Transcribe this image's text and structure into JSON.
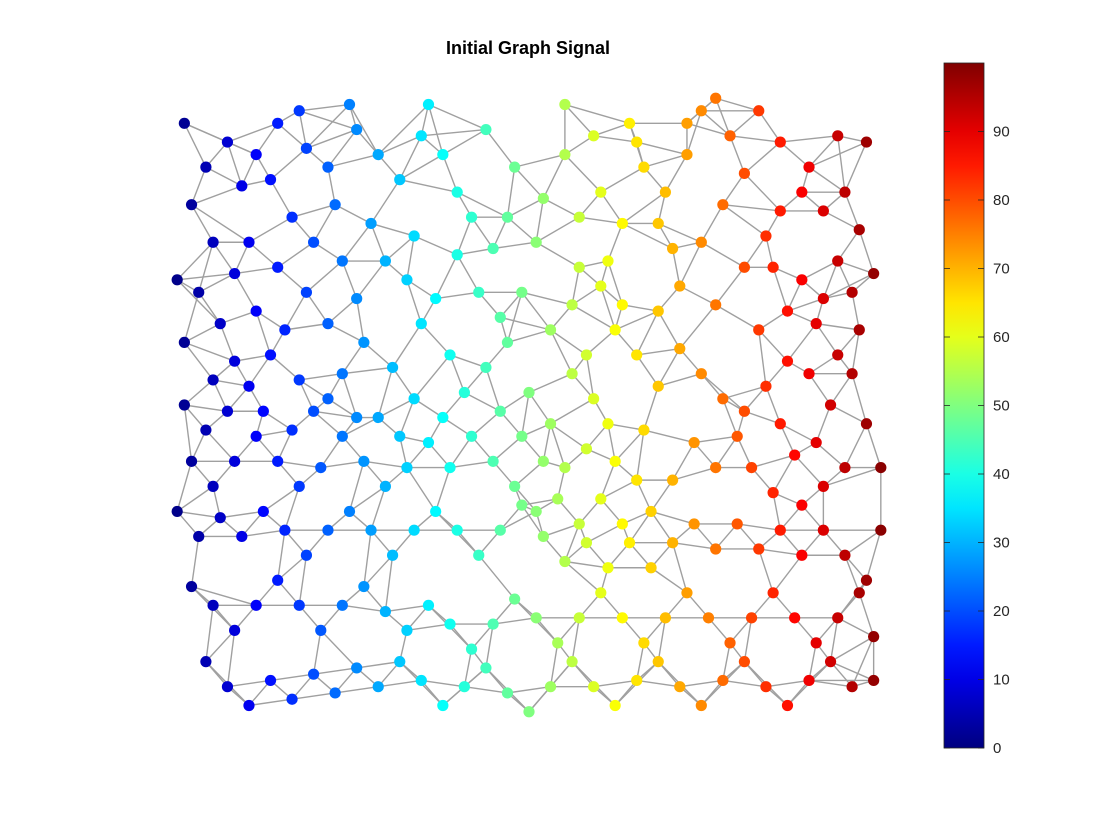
{
  "chart_data": {
    "type": "scatter",
    "subtype": "graph-signal",
    "title": "Initial Graph Signal",
    "xlabel": "",
    "ylabel": "",
    "axes_visible": false,
    "grid": false,
    "legend": "none",
    "colormap": "jet",
    "colorbar": {
      "location": "right",
      "range": [
        0,
        100
      ],
      "ticks": [
        0,
        10,
        20,
        30,
        40,
        50,
        60,
        70,
        80,
        90
      ]
    },
    "node_count_approx": 500,
    "signal_description": "node value increases linearly with x-coordinate from about 0 at the left edge to 100 at the right edge",
    "x_range": [
      0,
      1
    ],
    "y_range": [
      0,
      1
    ],
    "edge_color": "#a0a0a0",
    "nodes": [
      [
        0.02,
        0.95
      ],
      [
        0.05,
        0.88
      ],
      [
        0.03,
        0.82
      ],
      [
        0.08,
        0.92
      ],
      [
        0.1,
        0.85
      ],
      [
        0.12,
        0.9
      ],
      [
        0.15,
        0.95
      ],
      [
        0.14,
        0.86
      ],
      [
        0.17,
        0.8
      ],
      [
        0.06,
        0.76
      ],
      [
        0.11,
        0.76
      ],
      [
        0.19,
        0.91
      ],
      [
        0.22,
        0.88
      ],
      [
        0.26,
        0.94
      ],
      [
        0.23,
        0.82
      ],
      [
        0.28,
        0.79
      ],
      [
        0.24,
        0.73
      ],
      [
        0.3,
        0.73
      ],
      [
        0.32,
        0.86
      ],
      [
        0.29,
        0.9
      ],
      [
        0.36,
        0.98
      ],
      [
        0.38,
        0.9
      ],
      [
        0.4,
        0.84
      ],
      [
        0.42,
        0.8
      ],
      [
        0.45,
        0.75
      ],
      [
        0.4,
        0.74
      ],
      [
        0.37,
        0.67
      ],
      [
        0.43,
        0.68
      ],
      [
        0.48,
        0.88
      ],
      [
        0.52,
        0.83
      ],
      [
        0.55,
        0.9
      ],
      [
        0.57,
        0.8
      ],
      [
        0.51,
        0.76
      ],
      [
        0.57,
        0.72
      ],
      [
        0.61,
        0.73
      ],
      [
        0.64,
        0.95
      ],
      [
        0.66,
        0.88
      ],
      [
        0.69,
        0.84
      ],
      [
        0.68,
        0.79
      ],
      [
        0.72,
        0.9
      ],
      [
        0.74,
        0.97
      ],
      [
        0.78,
        0.93
      ],
      [
        0.82,
        0.97
      ],
      [
        0.8,
        0.87
      ],
      [
        0.77,
        0.82
      ],
      [
        0.74,
        0.76
      ],
      [
        0.8,
        0.72
      ],
      [
        0.85,
        0.81
      ],
      [
        0.88,
        0.84
      ],
      [
        0.91,
        0.81
      ],
      [
        0.94,
        0.84
      ],
      [
        0.96,
        0.78
      ],
      [
        0.93,
        0.73
      ],
      [
        0.98,
        0.71
      ],
      [
        0.95,
        0.68
      ],
      [
        0.91,
        0.67
      ],
      [
        0.88,
        0.7
      ],
      [
        0.84,
        0.72
      ],
      [
        0.86,
        0.65
      ],
      [
        0.9,
        0.63
      ],
      [
        0.01,
        0.7
      ],
      [
        0.04,
        0.68
      ],
      [
        0.07,
        0.63
      ],
      [
        0.02,
        0.6
      ],
      [
        0.09,
        0.57
      ],
      [
        0.06,
        0.54
      ],
      [
        0.11,
        0.53
      ],
      [
        0.14,
        0.58
      ],
      [
        0.16,
        0.62
      ],
      [
        0.18,
        0.54
      ],
      [
        0.2,
        0.49
      ],
      [
        0.24,
        0.55
      ],
      [
        0.27,
        0.6
      ],
      [
        0.31,
        0.56
      ],
      [
        0.34,
        0.51
      ],
      [
        0.29,
        0.48
      ],
      [
        0.35,
        0.63
      ],
      [
        0.39,
        0.58
      ],
      [
        0.44,
        0.56
      ],
      [
        0.47,
        0.6
      ],
      [
        0.5,
        0.52
      ],
      [
        0.53,
        0.47
      ],
      [
        0.56,
        0.55
      ],
      [
        0.59,
        0.51
      ],
      [
        0.61,
        0.47
      ],
      [
        0.58,
        0.43
      ],
      [
        0.55,
        0.4
      ],
      [
        0.62,
        0.41
      ],
      [
        0.65,
        0.38
      ],
      [
        0.66,
        0.46
      ],
      [
        0.68,
        0.53
      ],
      [
        0.71,
        0.59
      ],
      [
        0.74,
        0.55
      ],
      [
        0.77,
        0.51
      ],
      [
        0.8,
        0.49
      ],
      [
        0.83,
        0.53
      ],
      [
        0.79,
        0.45
      ],
      [
        0.85,
        0.47
      ],
      [
        0.87,
        0.42
      ],
      [
        0.9,
        0.44
      ],
      [
        0.92,
        0.5
      ],
      [
        0.95,
        0.55
      ],
      [
        0.97,
        0.47
      ],
      [
        0.99,
        0.4
      ],
      [
        0.94,
        0.4
      ],
      [
        0.91,
        0.37
      ],
      [
        0.88,
        0.34
      ],
      [
        0.84,
        0.36
      ],
      [
        0.81,
        0.4
      ],
      [
        0.76,
        0.4
      ],
      [
        0.73,
        0.44
      ],
      [
        0.7,
        0.38
      ],
      [
        0.67,
        0.33
      ],
      [
        0.63,
        0.31
      ],
      [
        0.6,
        0.35
      ],
      [
        0.57,
        0.31
      ],
      [
        0.54,
        0.35
      ],
      [
        0.51,
        0.33
      ],
      [
        0.48,
        0.37
      ],
      [
        0.45,
        0.41
      ],
      [
        0.42,
        0.45
      ],
      [
        0.39,
        0.4
      ],
      [
        0.36,
        0.44
      ],
      [
        0.33,
        0.4
      ],
      [
        0.3,
        0.37
      ],
      [
        0.27,
        0.41
      ],
      [
        0.24,
        0.45
      ],
      [
        0.21,
        0.4
      ],
      [
        0.18,
        0.37
      ],
      [
        0.15,
        0.41
      ],
      [
        0.12,
        0.45
      ],
      [
        0.09,
        0.41
      ],
      [
        0.06,
        0.37
      ],
      [
        0.03,
        0.41
      ],
      [
        0.01,
        0.33
      ],
      [
        0.04,
        0.29
      ],
      [
        0.07,
        0.32
      ],
      [
        0.1,
        0.29
      ],
      [
        0.13,
        0.33
      ],
      [
        0.16,
        0.3
      ],
      [
        0.19,
        0.26
      ],
      [
        0.22,
        0.3
      ],
      [
        0.25,
        0.33
      ],
      [
        0.28,
        0.3
      ],
      [
        0.31,
        0.26
      ],
      [
        0.34,
        0.3
      ],
      [
        0.37,
        0.33
      ],
      [
        0.4,
        0.3
      ],
      [
        0.43,
        0.26
      ],
      [
        0.46,
        0.3
      ],
      [
        0.49,
        0.34
      ],
      [
        0.52,
        0.29
      ],
      [
        0.55,
        0.25
      ],
      [
        0.58,
        0.28
      ],
      [
        0.61,
        0.24
      ],
      [
        0.64,
        0.28
      ],
      [
        0.67,
        0.24
      ],
      [
        0.7,
        0.28
      ],
      [
        0.73,
        0.31
      ],
      [
        0.76,
        0.27
      ],
      [
        0.79,
        0.31
      ],
      [
        0.82,
        0.27
      ],
      [
        0.85,
        0.3
      ],
      [
        0.88,
        0.26
      ],
      [
        0.91,
        0.3
      ],
      [
        0.94,
        0.26
      ],
      [
        0.97,
        0.22
      ],
      [
        0.99,
        0.3
      ],
      [
        0.03,
        0.21
      ],
      [
        0.06,
        0.18
      ],
      [
        0.09,
        0.14
      ],
      [
        0.12,
        0.18
      ],
      [
        0.15,
        0.22
      ],
      [
        0.18,
        0.18
      ],
      [
        0.21,
        0.14
      ],
      [
        0.24,
        0.18
      ],
      [
        0.27,
        0.21
      ],
      [
        0.3,
        0.17
      ],
      [
        0.33,
        0.14
      ],
      [
        0.36,
        0.18
      ],
      [
        0.39,
        0.15
      ],
      [
        0.42,
        0.11
      ],
      [
        0.45,
        0.15
      ],
      [
        0.48,
        0.19
      ],
      [
        0.51,
        0.16
      ],
      [
        0.54,
        0.12
      ],
      [
        0.57,
        0.16
      ],
      [
        0.6,
        0.2
      ],
      [
        0.63,
        0.16
      ],
      [
        0.66,
        0.12
      ],
      [
        0.69,
        0.16
      ],
      [
        0.72,
        0.2
      ],
      [
        0.75,
        0.16
      ],
      [
        0.78,
        0.12
      ],
      [
        0.81,
        0.16
      ],
      [
        0.84,
        0.2
      ],
      [
        0.87,
        0.16
      ],
      [
        0.9,
        0.12
      ],
      [
        0.93,
        0.16
      ],
      [
        0.96,
        0.2
      ],
      [
        0.98,
        0.13
      ],
      [
        0.05,
        0.09
      ],
      [
        0.08,
        0.05
      ],
      [
        0.11,
        0.02
      ],
      [
        0.14,
        0.06
      ],
      [
        0.17,
        0.03
      ],
      [
        0.2,
        0.07
      ],
      [
        0.23,
        0.04
      ],
      [
        0.26,
        0.08
      ],
      [
        0.29,
        0.05
      ],
      [
        0.32,
        0.09
      ],
      [
        0.35,
        0.06
      ],
      [
        0.38,
        0.02
      ],
      [
        0.41,
        0.05
      ],
      [
        0.44,
        0.08
      ],
      [
        0.47,
        0.04
      ],
      [
        0.5,
        0.01
      ],
      [
        0.53,
        0.05
      ],
      [
        0.56,
        0.09
      ],
      [
        0.59,
        0.05
      ],
      [
        0.62,
        0.02
      ],
      [
        0.65,
        0.06
      ],
      [
        0.68,
        0.09
      ],
      [
        0.71,
        0.05
      ],
      [
        0.74,
        0.02
      ],
      [
        0.77,
        0.06
      ],
      [
        0.8,
        0.09
      ],
      [
        0.83,
        0.05
      ],
      [
        0.86,
        0.02
      ],
      [
        0.89,
        0.06
      ],
      [
        0.92,
        0.09
      ],
      [
        0.95,
        0.05
      ],
      [
        0.98,
        0.06
      ],
      [
        0.02,
        0.5
      ],
      [
        0.05,
        0.46
      ],
      [
        0.08,
        0.49
      ],
      [
        0.13,
        0.49
      ],
      [
        0.17,
        0.46
      ],
      [
        0.22,
        0.51
      ],
      [
        0.26,
        0.48
      ],
      [
        0.32,
        0.45
      ],
      [
        0.38,
        0.48
      ],
      [
        0.41,
        0.52
      ],
      [
        0.46,
        0.49
      ],
      [
        0.49,
        0.45
      ],
      [
        0.52,
        0.41
      ],
      [
        0.58,
        0.58
      ],
      [
        0.62,
        0.62
      ],
      [
        0.65,
        0.58
      ],
      [
        0.68,
        0.65
      ],
      [
        0.71,
        0.69
      ],
      [
        0.76,
        0.66
      ],
      [
        0.82,
        0.62
      ],
      [
        0.86,
        0.57
      ],
      [
        0.89,
        0.55
      ],
      [
        0.93,
        0.58
      ],
      [
        0.96,
        0.62
      ],
      [
        0.12,
        0.65
      ],
      [
        0.19,
        0.68
      ],
      [
        0.22,
        0.63
      ],
      [
        0.26,
        0.67
      ],
      [
        0.33,
        0.7
      ],
      [
        0.46,
        0.64
      ],
      [
        0.49,
        0.68
      ],
      [
        0.53,
        0.62
      ],
      [
        0.56,
        0.66
      ],
      [
        0.6,
        0.69
      ],
      [
        0.63,
        0.66
      ],
      [
        0.09,
        0.71
      ],
      [
        0.15,
        0.72
      ],
      [
        0.2,
        0.76
      ],
      [
        0.34,
        0.77
      ],
      [
        0.47,
        0.8
      ],
      [
        0.6,
        0.84
      ],
      [
        0.63,
        0.79
      ],
      [
        0.7,
        0.75
      ],
      [
        0.83,
        0.77
      ],
      [
        0.97,
        0.92
      ],
      [
        0.93,
        0.93
      ],
      [
        0.89,
        0.88
      ],
      [
        0.18,
        0.97
      ],
      [
        0.35,
        0.93
      ],
      [
        0.44,
        0.94
      ],
      [
        0.59,
        0.93
      ],
      [
        0.65,
        0.92
      ],
      [
        0.72,
        0.95
      ],
      [
        0.85,
        0.92
      ],
      [
        0.25,
        0.98
      ],
      [
        0.55,
        0.98
      ],
      [
        0.76,
        0.99
      ]
    ]
  }
}
